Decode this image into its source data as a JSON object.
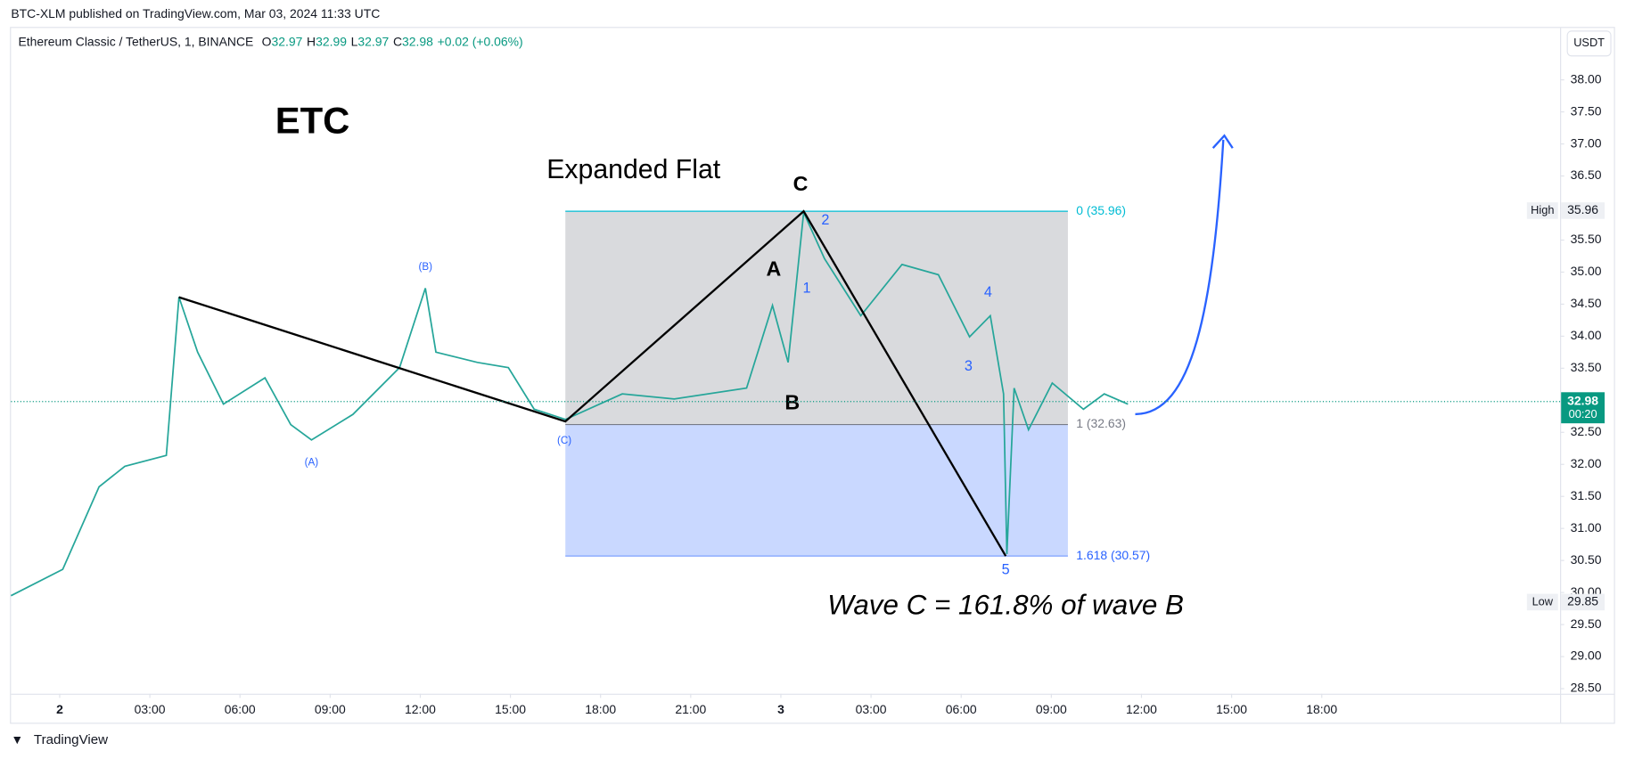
{
  "header": {
    "published": "BTC-XLM published on TradingView.com, Mar 03, 2024 11:33 UTC",
    "symbol": "Ethereum Classic / TetherUS, 1, BINANCE",
    "ohlc": [
      {
        "k": "O",
        "v": "32.97"
      },
      {
        "k": "H",
        "v": "32.99"
      },
      {
        "k": "L",
        "v": "32.97"
      },
      {
        "k": "C",
        "v": "32.98"
      }
    ],
    "change": "+0.02 (+0.06%)",
    "currency": "USDT"
  },
  "footer": "TradingView",
  "chart_data": {
    "type": "line",
    "color": "#26a69a",
    "x": [
      -1.62,
      0.1,
      1.31,
      2.17,
      3.55,
      3.97,
      4.59,
      5.45,
      6.83,
      7.69,
      8.38,
      9.76,
      11.31,
      12.17,
      12.52,
      13.9,
      14.93,
      15.79,
      16.83,
      18.72,
      20.45,
      22.86,
      23.72,
      24.24,
      24.76,
      25.45,
      26.66,
      28.03,
      29.24,
      30.28,
      30.97,
      31.41,
      31.52,
      31.76,
      32.24,
      33.03,
      34.07,
      34.76,
      35.55
    ],
    "values": [
      29.95,
      30.36,
      31.65,
      31.97,
      32.14,
      34.61,
      33.75,
      32.94,
      33.35,
      32.62,
      32.38,
      32.78,
      33.51,
      34.75,
      33.75,
      33.59,
      33.51,
      32.86,
      32.7,
      33.1,
      33.02,
      33.19,
      34.48,
      33.59,
      35.93,
      35.21,
      34.32,
      35.12,
      34.96,
      33.99,
      34.32,
      33.1,
      30.6,
      33.19,
      32.54,
      33.27,
      32.86,
      33.1,
      32.94
    ],
    "xlim": [
      -1.62,
      49.93
    ],
    "xticks": [
      {
        "value": 0,
        "label": "2"
      },
      {
        "value": 3,
        "label": "03:00"
      },
      {
        "value": 6,
        "label": "06:00"
      },
      {
        "value": 9,
        "label": "09:00"
      },
      {
        "value": 12,
        "label": "12:00"
      },
      {
        "value": 15,
        "label": "15:00"
      },
      {
        "value": 18,
        "label": "18:00"
      },
      {
        "value": 21,
        "label": "21:00"
      },
      {
        "value": 24,
        "label": "3"
      },
      {
        "value": 27,
        "label": "03:00"
      },
      {
        "value": 30,
        "label": "06:00"
      },
      {
        "value": 33,
        "label": "09:00"
      },
      {
        "value": 36,
        "label": "12:00"
      },
      {
        "value": 39,
        "label": "15:00"
      },
      {
        "value": 42,
        "label": "18:00"
      }
    ],
    "ylim": [
      28.42,
      38.81
    ],
    "yticks": [
      {
        "value": 28.5,
        "label": "28.50"
      },
      {
        "value": 29,
        "label": "29.00"
      },
      {
        "value": 29.5,
        "label": "29.50"
      },
      {
        "value": 30,
        "label": "30.00"
      },
      {
        "value": 30.5,
        "label": "30.50"
      },
      {
        "value": 31,
        "label": "31.00"
      },
      {
        "value": 31.5,
        "label": "31.50"
      },
      {
        "value": 32,
        "label": "32.00"
      },
      {
        "value": 32.5,
        "label": "32.50"
      },
      {
        "value": 33,
        "label": "33.00"
      },
      {
        "value": 33.5,
        "label": "33.50"
      },
      {
        "value": 34,
        "label": "34.00"
      },
      {
        "value": 34.5,
        "label": "34.50"
      },
      {
        "value": 35,
        "label": "35.00"
      },
      {
        "value": 35.5,
        "label": "35.50"
      },
      {
        "value": 36,
        "label": "36.00"
      },
      {
        "value": 36.5,
        "label": "36.50"
      },
      {
        "value": 37,
        "label": "37.00"
      },
      {
        "value": 37.5,
        "label": "37.50"
      },
      {
        "value": 38,
        "label": "38.00"
      }
    ],
    "grid": false,
    "last_price": {
      "value": 32.98,
      "label": "32.98",
      "countdown": "00:20"
    },
    "high": {
      "label": "High",
      "value": 35.96,
      "text": "35.96"
    },
    "low": {
      "label": "Low",
      "value": 29.85,
      "text": "29.85"
    },
    "annotations": {
      "ticker": "ETC",
      "pattern": "Expanded Flat",
      "C": "C",
      "A": "A",
      "B": "B",
      "w1": "1",
      "w2": "2",
      "w3": "3",
      "w4": "4",
      "w5": "5",
      "pA": "(A)",
      "pB": "(B)",
      "pC": "(C)",
      "fib0": "0 (35.96)",
      "fib1": "1 (32.63)",
      "fib1618": "1.618 (30.57)",
      "note": "Wave C = 161.8% of wave B"
    }
  }
}
